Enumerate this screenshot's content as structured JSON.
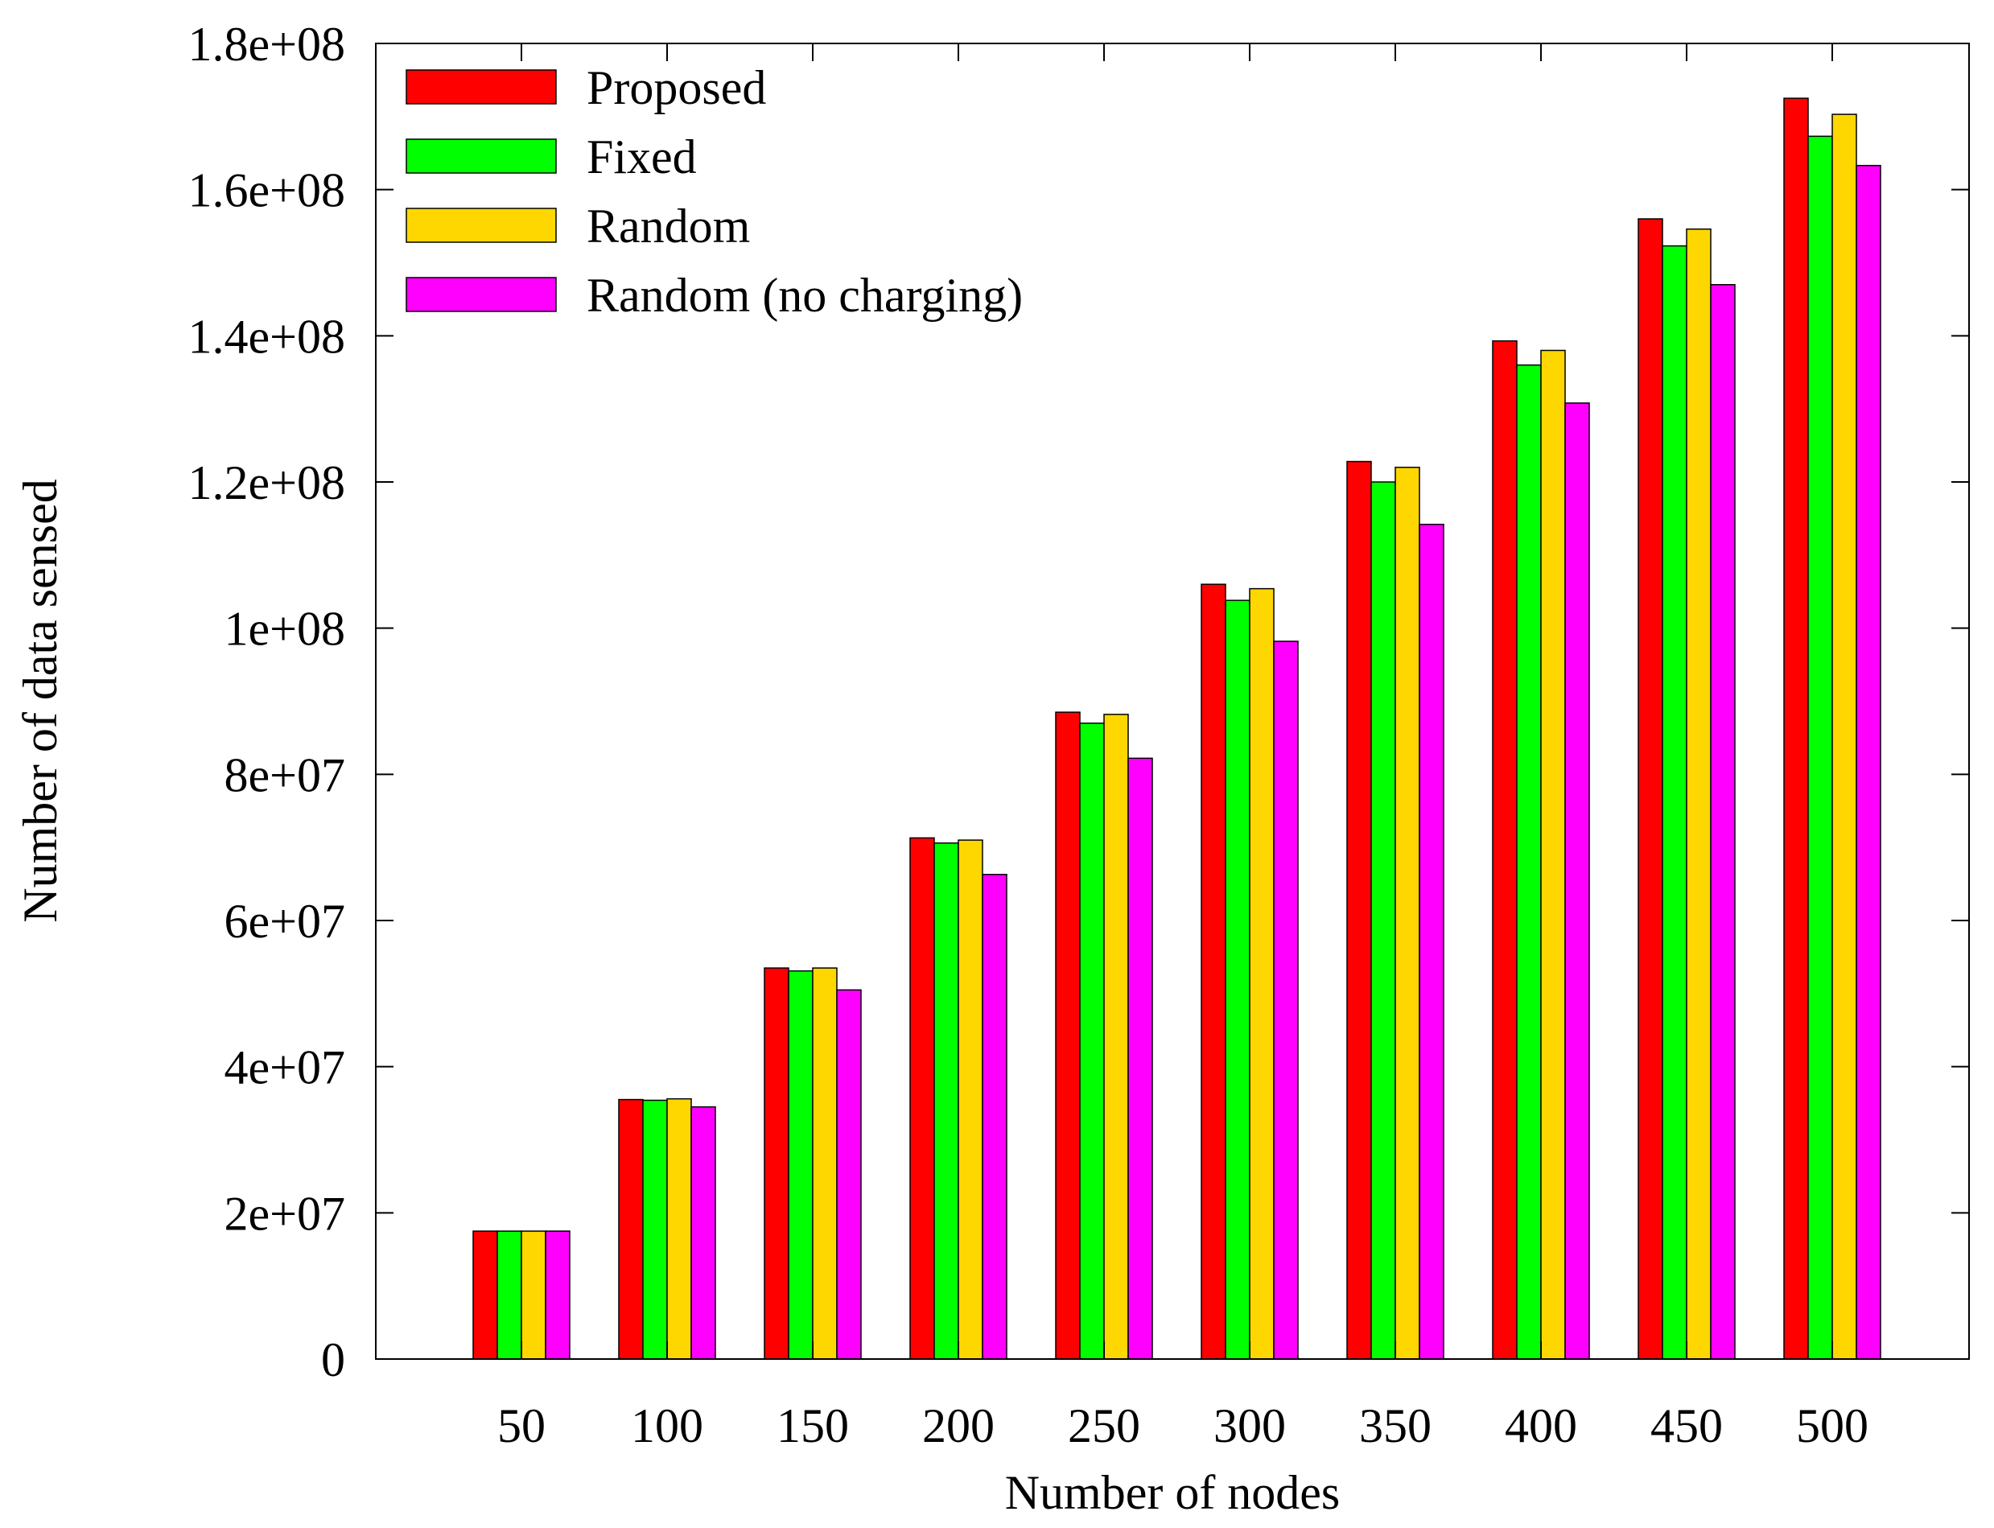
{
  "chart_data": {
    "type": "bar",
    "title": "",
    "xlabel": "Number of nodes",
    "ylabel": "Number of data sensed",
    "categories": [
      "50",
      "100",
      "150",
      "200",
      "250",
      "300",
      "350",
      "400",
      "450",
      "500"
    ],
    "ylim": [
      0,
      180000000
    ],
    "yticks": [
      0,
      20000000,
      40000000,
      60000000,
      80000000,
      100000000,
      120000000,
      140000000,
      160000000,
      180000000
    ],
    "ytick_labels": [
      "0",
      "2e+07",
      "4e+07",
      "6e+07",
      "8e+07",
      "1e+08",
      "1.2e+08",
      "1.4e+08",
      "1.6e+08",
      "1.8e+08"
    ],
    "grid": false,
    "legend_position": "top-left",
    "series": [
      {
        "name": "Proposed",
        "color": "#ff0000",
        "values": [
          17500000,
          35500000,
          53500000,
          71300000,
          88500000,
          106000000,
          122800000,
          139300000,
          156000000,
          172500000
        ]
      },
      {
        "name": "Fixed",
        "color": "#00ff00",
        "values": [
          17500000,
          35400000,
          53100000,
          70600000,
          87000000,
          103800000,
          120000000,
          136000000,
          152300000,
          167300000
        ]
      },
      {
        "name": "Random",
        "color": "#ffd700",
        "values": [
          17500000,
          35600000,
          53500000,
          71000000,
          88200000,
          105400000,
          122000000,
          138000000,
          154600000,
          170300000
        ]
      },
      {
        "name": "Random (no charging)",
        "color": "#ff00ff",
        "values": [
          17500000,
          34500000,
          50500000,
          66300000,
          82200000,
          98200000,
          114200000,
          130800000,
          147000000,
          163300000
        ]
      }
    ]
  }
}
